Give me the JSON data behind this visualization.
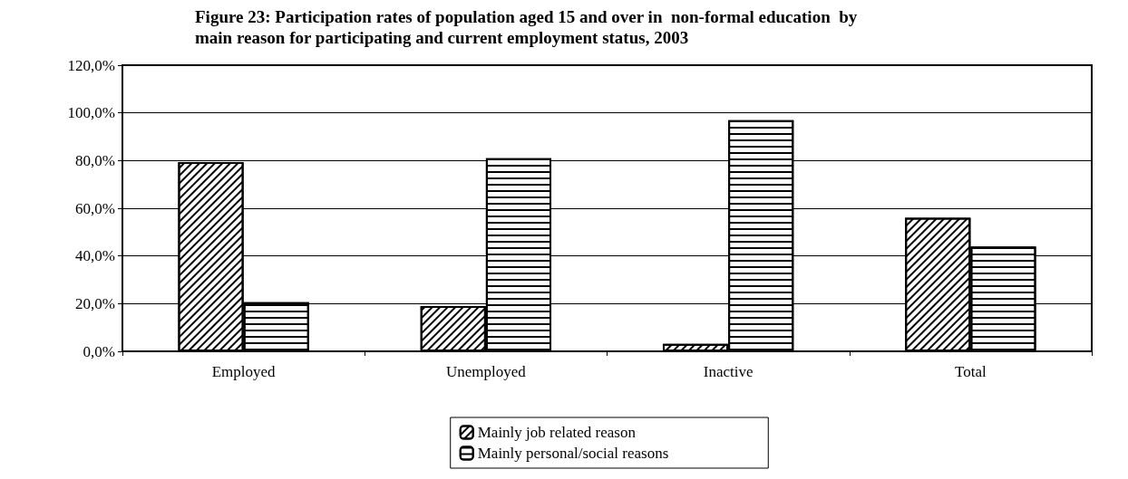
{
  "chart_data": {
    "type": "bar",
    "title": "Figure 23: Participation rates of population aged 15 and over in  non-formal education  by main reason for participating and current employment status, 2003",
    "categories": [
      "Employed",
      "Unemployed",
      "Inactive",
      "Total"
    ],
    "series": [
      {
        "name": "Mainly job related reason",
        "color": "#ffffff",
        "values": [
          79.4,
          19.0,
          3.1,
          56.0
        ]
      },
      {
        "name": "Mainly personal/social reasons",
        "color": "#ffffff",
        "values": [
          20.6,
          81.0,
          96.9,
          44.0
        ]
      }
    ],
    "ylim": [
      0,
      120
    ],
    "yticks": [
      {
        "value": 0,
        "label": "0,0%"
      },
      {
        "value": 20,
        "label": "20,0%"
      },
      {
        "value": 40,
        "label": "40,0%"
      },
      {
        "value": 60,
        "label": "60,0%"
      },
      {
        "value": 80,
        "label": "80,0%"
      },
      {
        "value": 100,
        "label": "100,0%"
      },
      {
        "value": 120,
        "label": "120,0%"
      }
    ],
    "grid": "y",
    "legend": "bottom"
  }
}
